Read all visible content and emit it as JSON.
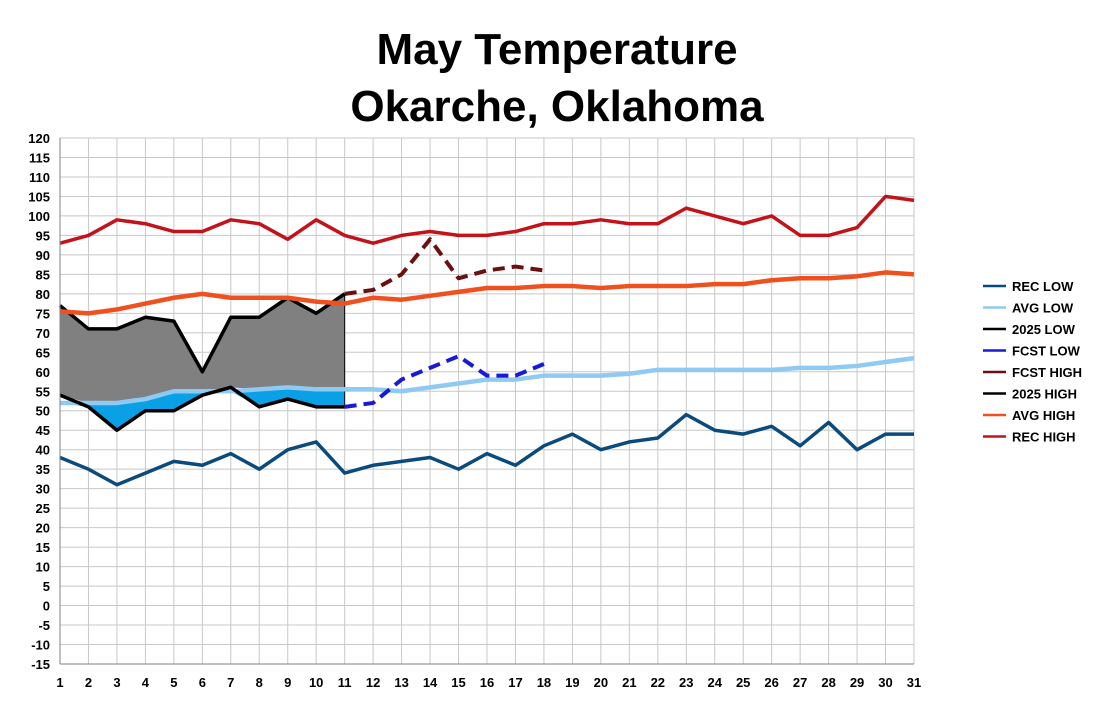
{
  "chart_data": {
    "type": "line",
    "title": "May Temperature",
    "subtitle": "Okarche, Oklahoma",
    "xlabel": "",
    "ylabel": "",
    "x": [
      1,
      2,
      3,
      4,
      5,
      6,
      7,
      8,
      9,
      10,
      11,
      12,
      13,
      14,
      15,
      16,
      17,
      18,
      19,
      20,
      21,
      22,
      23,
      24,
      25,
      26,
      27,
      28,
      29,
      30,
      31
    ],
    "xlim": [
      1,
      31
    ],
    "ylim": [
      -15,
      120
    ],
    "ytick_step": 5,
    "grid": true,
    "legend_position": "right",
    "shaded_range": {
      "x_start": 1,
      "x_end": 11,
      "gray_color": "#808080",
      "blue_color": "#0aa0e6"
    },
    "series": [
      {
        "name": "REC LOW",
        "color": "#0b4a7c",
        "width": 3.5,
        "dash": "",
        "values": [
          38,
          35,
          31,
          34,
          37,
          36,
          39,
          35,
          40,
          42,
          34,
          36,
          37,
          38,
          35,
          39,
          36,
          41,
          44,
          40,
          42,
          43,
          49,
          45,
          44,
          46,
          41,
          47,
          40,
          44,
          44
        ]
      },
      {
        "name": "AVG LOW",
        "color": "#8fcaf2",
        "width": 4.5,
        "dash": "",
        "values": [
          52,
          52,
          52,
          53,
          55,
          55,
          55,
          55.5,
          56,
          55.5,
          55.5,
          55.5,
          55,
          56,
          57,
          58,
          58,
          59,
          59,
          59,
          59.5,
          60.5,
          60.5,
          60.5,
          60.5,
          60.5,
          61,
          61,
          61.5,
          62.5,
          63.5
        ]
      },
      {
        "name": "2025 LOW",
        "color": "#000000",
        "width": 3.5,
        "dash": "",
        "values": [
          54,
          51,
          45,
          50,
          50,
          54,
          56,
          51,
          53,
          51,
          51,
          null,
          null,
          null,
          null,
          null,
          null,
          null,
          null,
          null,
          null,
          null,
          null,
          null,
          null,
          null,
          null,
          null,
          null,
          null,
          null
        ]
      },
      {
        "name": "FCST LOW",
        "color": "#1a1ad4",
        "width": 4,
        "dash": "12,7",
        "values": [
          null,
          null,
          null,
          null,
          null,
          null,
          null,
          null,
          null,
          null,
          51,
          52,
          58,
          61,
          64,
          59,
          59,
          62,
          null,
          null,
          null,
          null,
          null,
          null,
          null,
          null,
          null,
          null,
          null,
          null,
          null
        ]
      },
      {
        "name": "FCST HIGH",
        "color": "#6b0f10",
        "width": 4,
        "dash": "12,7",
        "values": [
          null,
          null,
          null,
          null,
          null,
          null,
          null,
          null,
          null,
          null,
          80,
          81,
          85,
          94,
          84,
          86,
          87,
          86,
          null,
          null,
          null,
          null,
          null,
          null,
          null,
          null,
          null,
          null,
          null,
          null,
          null
        ]
      },
      {
        "name": "2025 HIGH",
        "color": "#000000",
        "width": 3.5,
        "dash": "",
        "values": [
          77,
          71,
          71,
          74,
          73,
          60,
          74,
          74,
          79,
          75,
          80,
          null,
          null,
          null,
          null,
          null,
          null,
          null,
          null,
          null,
          null,
          null,
          null,
          null,
          null,
          null,
          null,
          null,
          null,
          null,
          null
        ]
      },
      {
        "name": "AVG HIGH",
        "color": "#f0501e",
        "width": 4.5,
        "dash": "",
        "values": [
          75.5,
          75,
          76,
          77.5,
          79,
          80,
          79,
          79,
          79,
          78,
          77.5,
          79,
          78.5,
          79.5,
          80.5,
          81.5,
          81.5,
          82,
          82,
          81.5,
          82,
          82,
          82,
          82.5,
          82.5,
          83.5,
          84,
          84,
          84.5,
          85.5,
          85
        ]
      },
      {
        "name": "REC HIGH",
        "color": "#c2131a",
        "width": 3.5,
        "dash": "",
        "values": [
          93,
          95,
          99,
          98,
          96,
          96,
          99,
          98,
          94,
          99,
          95,
          93,
          95,
          96,
          95,
          95,
          96,
          98,
          98,
          99,
          98,
          98,
          102,
          100,
          98,
          100,
          95,
          95,
          97,
          105,
          104
        ]
      }
    ]
  }
}
